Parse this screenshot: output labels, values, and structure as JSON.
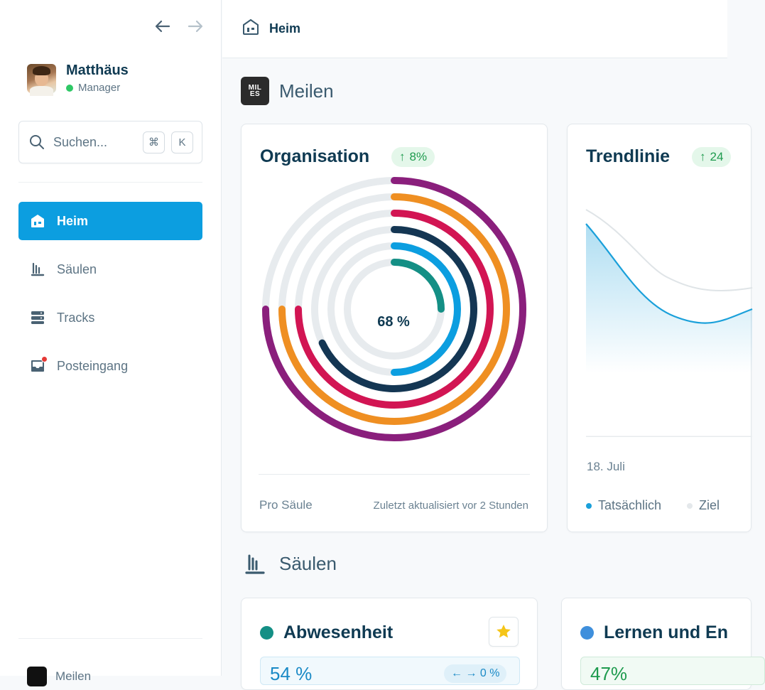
{
  "sidebar": {
    "user": {
      "name": "Matthäus",
      "role": "Manager"
    },
    "search": {
      "placeholder": "Suchen...",
      "shortcut_cmd": "⌘",
      "shortcut_key": "K"
    },
    "items": [
      {
        "label": "Heim",
        "icon": "home-icon",
        "active": true
      },
      {
        "label": "Säulen",
        "icon": "pillars-icon",
        "active": false
      },
      {
        "label": "Tracks",
        "icon": "tracks-icon",
        "active": false
      },
      {
        "label": "Posteingang",
        "icon": "inbox-icon",
        "active": false,
        "notification": true
      }
    ],
    "footer_brand": "Meilen"
  },
  "header": {
    "title": "Heim",
    "icon": "home-icon"
  },
  "meilen_section": {
    "title": "Meilen",
    "logo_text": "MILES"
  },
  "organisation_card": {
    "title": "Organisation",
    "change": "8%",
    "center_label": "68 %",
    "footer_left": "Pro Säule",
    "footer_right": "Zuletzt aktualisiert vor 2 Stunden",
    "chart_data": {
      "type": "radial-bar",
      "rings": [
        {
          "color": "#8a1f7c",
          "value": 75
        },
        {
          "color": "#ef8f22",
          "value": 75
        },
        {
          "color": "#d21553",
          "value": 75
        },
        {
          "color": "#143653",
          "value": 68
        },
        {
          "color": "#0c9ee0",
          "value": 50
        },
        {
          "color": "#148f85",
          "value": 25
        }
      ],
      "track_color": "#e7ebee"
    }
  },
  "trend_card": {
    "title": "Trendlinie",
    "change": "24",
    "x_label": "18. Juli",
    "legend_actual": "Tatsächlich",
    "legend_target": "Ziel",
    "colors": {
      "actual": "#1aa0da",
      "target": "#dfe4e7"
    }
  },
  "saeulen_section": {
    "title": "Säulen"
  },
  "pillar_cards": [
    {
      "title": "Abwesenheit",
      "dot_color": "#148f85",
      "value": "54 %",
      "change": "← → 0 %",
      "favorite": true
    },
    {
      "title": "Lernen und En",
      "dot_color": "#3f8fdc",
      "value": "47%"
    }
  ]
}
